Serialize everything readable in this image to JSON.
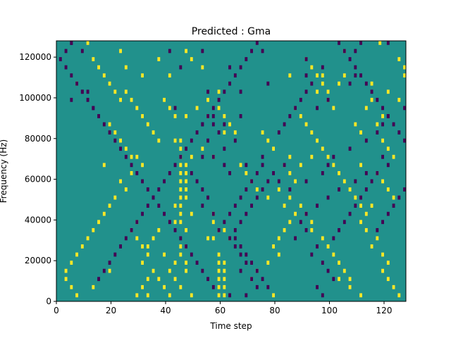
{
  "chart_data": {
    "type": "heatmap",
    "title": "Predicted : Gma",
    "xlabel": "Time step",
    "ylabel": "Frequency (Hz)",
    "xlim": [
      0,
      128
    ],
    "ylim": [
      0,
      128000
    ],
    "xticks": [
      0,
      20,
      40,
      60,
      80,
      100,
      120
    ],
    "xtick_labels": [
      "0",
      "20",
      "40",
      "60",
      "80",
      "100",
      "120"
    ],
    "yticks": [
      0,
      20000,
      40000,
      60000,
      80000,
      100000,
      120000
    ],
    "ytick_labels": [
      "0",
      "20000",
      "40000",
      "60000",
      "80000",
      "100000",
      "120000"
    ],
    "grid": false,
    "colormap": "viridis",
    "colors": {
      "background": "#21918c",
      "low": "#440154",
      "high": "#fde725"
    },
    "freq_bin_hz": 2000,
    "time_bin": 1,
    "high_cells": [
      [
        11,
        126
      ],
      [
        23,
        122
      ],
      [
        47,
        122
      ],
      [
        118,
        126
      ],
      [
        105,
        122
      ],
      [
        49,
        118
      ],
      [
        37,
        118
      ],
      [
        25,
        114
      ],
      [
        105,
        110
      ],
      [
        53,
        114
      ],
      [
        31,
        110
      ],
      [
        85,
        110
      ],
      [
        7,
        106
      ],
      [
        41,
        110
      ],
      [
        103,
        106
      ],
      [
        97,
        110
      ],
      [
        95,
        102
      ],
      [
        59,
        102
      ],
      [
        55,
        98
      ],
      [
        59,
        94
      ],
      [
        51,
        94
      ],
      [
        61,
        90
      ],
      [
        55,
        90
      ],
      [
        47,
        90
      ],
      [
        63,
        86
      ],
      [
        65,
        82
      ],
      [
        61,
        82
      ],
      [
        37,
        78
      ],
      [
        43,
        78
      ],
      [
        53,
        74
      ],
      [
        45,
        78
      ],
      [
        45,
        74
      ],
      [
        49,
        70
      ],
      [
        45,
        70
      ],
      [
        93,
        70
      ],
      [
        17,
        66
      ],
      [
        47,
        66
      ],
      [
        45,
        66
      ],
      [
        45,
        62
      ],
      [
        47,
        62
      ],
      [
        45,
        58
      ],
      [
        47,
        58
      ],
      [
        45,
        54
      ],
      [
        47,
        54
      ],
      [
        45,
        50
      ],
      [
        47,
        50
      ],
      [
        45,
        46
      ],
      [
        43,
        46
      ],
      [
        49,
        42
      ],
      [
        45,
        42
      ],
      [
        57,
        42
      ],
      [
        57,
        38
      ],
      [
        43,
        38
      ],
      [
        45,
        38
      ],
      [
        37,
        34
      ],
      [
        47,
        34
      ],
      [
        59,
        34
      ],
      [
        61,
        34
      ],
      [
        57,
        30
      ],
      [
        63,
        30
      ],
      [
        55,
        30
      ],
      [
        35,
        30
      ],
      [
        33,
        26
      ],
      [
        45,
        26
      ],
      [
        47,
        26
      ],
      [
        39,
        22
      ],
      [
        59,
        22
      ],
      [
        45,
        22
      ],
      [
        43,
        18
      ],
      [
        47,
        18
      ],
      [
        61,
        18
      ],
      [
        59,
        18
      ],
      [
        41,
        14
      ],
      [
        47,
        14
      ],
      [
        59,
        14
      ],
      [
        61,
        14
      ],
      [
        43,
        10
      ],
      [
        61,
        10
      ],
      [
        59,
        10
      ],
      [
        45,
        6
      ],
      [
        59,
        6
      ],
      [
        61,
        6
      ],
      [
        31,
        6
      ],
      [
        79,
        2
      ],
      [
        61,
        2
      ],
      [
        59,
        2
      ],
      [
        49,
        2
      ],
      [
        33,
        2
      ],
      [
        107,
        10
      ],
      [
        29,
        2
      ],
      [
        19,
        14
      ],
      [
        13,
        6
      ],
      [
        75,
        82
      ],
      [
        77,
        78
      ],
      [
        79,
        74
      ],
      [
        85,
        70
      ],
      [
        83,
        66
      ],
      [
        89,
        66
      ],
      [
        85,
        62
      ],
      [
        87,
        58
      ],
      [
        81,
        54
      ],
      [
        77,
        50
      ],
      [
        85,
        50
      ],
      [
        83,
        46
      ],
      [
        87,
        42
      ],
      [
        85,
        38
      ],
      [
        83,
        34
      ],
      [
        81,
        30
      ],
      [
        79,
        26
      ],
      [
        81,
        22
      ],
      [
        77,
        18
      ],
      [
        73,
        14
      ],
      [
        71,
        10
      ],
      [
        57,
        70
      ],
      [
        67,
        66
      ],
      [
        69,
        62
      ],
      [
        71,
        58
      ],
      [
        73,
        54
      ],
      [
        89,
        46
      ],
      [
        91,
        42
      ],
      [
        93,
        38
      ],
      [
        93,
        34
      ],
      [
        97,
        30
      ],
      [
        99,
        26
      ],
      [
        101,
        22
      ],
      [
        103,
        18
      ],
      [
        105,
        14
      ],
      [
        103,
        10
      ],
      [
        107,
        6
      ],
      [
        111,
        2
      ],
      [
        115,
        106
      ],
      [
        99,
        98
      ],
      [
        101,
        94
      ],
      [
        109,
        86
      ],
      [
        111,
        82
      ],
      [
        119,
        78
      ],
      [
        121,
        74
      ],
      [
        123,
        70
      ],
      [
        111,
        66
      ],
      [
        117,
        62
      ],
      [
        119,
        58
      ],
      [
        121,
        54
      ],
      [
        123,
        50
      ],
      [
        115,
        46
      ],
      [
        113,
        42
      ],
      [
        111,
        38
      ],
      [
        113,
        34
      ],
      [
        117,
        30
      ],
      [
        115,
        26
      ],
      [
        119,
        22
      ],
      [
        121,
        18
      ],
      [
        119,
        14
      ],
      [
        121,
        10
      ],
      [
        123,
        6
      ],
      [
        125,
        2
      ],
      [
        29,
        70
      ],
      [
        31,
        66
      ],
      [
        27,
        62
      ],
      [
        23,
        58
      ],
      [
        25,
        54
      ],
      [
        21,
        50
      ],
      [
        19,
        46
      ],
      [
        17,
        42
      ],
      [
        15,
        38
      ],
      [
        13,
        34
      ],
      [
        11,
        30
      ],
      [
        9,
        26
      ],
      [
        7,
        22
      ],
      [
        5,
        18
      ],
      [
        3,
        14
      ],
      [
        3,
        10
      ],
      [
        5,
        6
      ],
      [
        7,
        2
      ],
      [
        29,
        38
      ],
      [
        27,
        34
      ],
      [
        29,
        30
      ],
      [
        31,
        26
      ],
      [
        33,
        22
      ],
      [
        31,
        18
      ],
      [
        35,
        14
      ],
      [
        37,
        10
      ],
      [
        33,
        10
      ],
      [
        39,
        6
      ],
      [
        41,
        2
      ],
      [
        125,
        118
      ],
      [
        127,
        114
      ],
      [
        127,
        110
      ],
      [
        121,
        102
      ],
      [
        125,
        98
      ],
      [
        119,
        90
      ],
      [
        117,
        86
      ],
      [
        113,
        94
      ],
      [
        115,
        98
      ],
      [
        91,
        118
      ],
      [
        93,
        114
      ],
      [
        95,
        110
      ],
      [
        97,
        106
      ],
      [
        99,
        102
      ],
      [
        87,
        94
      ],
      [
        89,
        90
      ],
      [
        91,
        86
      ],
      [
        93,
        82
      ],
      [
        95,
        78
      ],
      [
        97,
        74
      ],
      [
        99,
        70
      ],
      [
        101,
        66
      ],
      [
        103,
        62
      ],
      [
        105,
        58
      ],
      [
        107,
        54
      ],
      [
        109,
        50
      ],
      [
        111,
        46
      ],
      [
        39,
        98
      ],
      [
        41,
        94
      ],
      [
        43,
        90
      ],
      [
        25,
        102
      ],
      [
        27,
        98
      ],
      [
        29,
        94
      ],
      [
        31,
        90
      ],
      [
        33,
        86
      ],
      [
        35,
        82
      ],
      [
        19,
        86
      ],
      [
        21,
        82
      ],
      [
        23,
        78
      ],
      [
        25,
        74
      ],
      [
        27,
        70
      ],
      [
        13,
        118
      ],
      [
        15,
        114
      ],
      [
        17,
        110
      ],
      [
        19,
        106
      ],
      [
        21,
        102
      ],
      [
        23,
        98
      ]
    ],
    "low_cells": [
      [
        5,
        126
      ],
      [
        9,
        122
      ],
      [
        41,
        122
      ],
      [
        53,
        122
      ],
      [
        75,
        122
      ],
      [
        111,
        126
      ],
      [
        121,
        126
      ],
      [
        109,
        122
      ],
      [
        91,
        118
      ],
      [
        97,
        114
      ],
      [
        63,
        114
      ],
      [
        45,
        114
      ],
      [
        91,
        110
      ],
      [
        93,
        106
      ],
      [
        107,
        106
      ],
      [
        109,
        110
      ],
      [
        9,
        102
      ],
      [
        11,
        102
      ],
      [
        5,
        98
      ],
      [
        13,
        94
      ],
      [
        55,
        102
      ],
      [
        43,
        94
      ],
      [
        67,
        102
      ],
      [
        77,
        106
      ],
      [
        91,
        102
      ],
      [
        99,
        98
      ],
      [
        95,
        94
      ],
      [
        57,
        90
      ],
      [
        53,
        86
      ],
      [
        57,
        86
      ],
      [
        67,
        90
      ],
      [
        61,
        86
      ],
      [
        59,
        82
      ],
      [
        65,
        78
      ],
      [
        61,
        74
      ],
      [
        55,
        78
      ],
      [
        53,
        70
      ],
      [
        57,
        70
      ],
      [
        61,
        66
      ],
      [
        63,
        62
      ],
      [
        69,
        66
      ],
      [
        75,
        70
      ],
      [
        83,
        66
      ],
      [
        79,
        62
      ],
      [
        81,
        58
      ],
      [
        85,
        54
      ],
      [
        91,
        58
      ],
      [
        97,
        62
      ],
      [
        99,
        66
      ],
      [
        101,
        70
      ],
      [
        107,
        74
      ],
      [
        113,
        78
      ],
      [
        117,
        82
      ],
      [
        119,
        86
      ],
      [
        121,
        90
      ],
      [
        127,
        94
      ],
      [
        119,
        70
      ],
      [
        121,
        66
      ],
      [
        113,
        62
      ],
      [
        109,
        58
      ],
      [
        103,
        54
      ],
      [
        99,
        50
      ],
      [
        95,
        46
      ],
      [
        91,
        42
      ],
      [
        89,
        38
      ],
      [
        91,
        34
      ],
      [
        87,
        30
      ],
      [
        95,
        26
      ],
      [
        93,
        22
      ],
      [
        97,
        18
      ],
      [
        99,
        14
      ],
      [
        101,
        10
      ],
      [
        95,
        6
      ],
      [
        97,
        2
      ],
      [
        49,
        62
      ],
      [
        51,
        58
      ],
      [
        53,
        54
      ],
      [
        55,
        50
      ],
      [
        53,
        46
      ],
      [
        57,
        42
      ],
      [
        61,
        38
      ],
      [
        59,
        34
      ],
      [
        63,
        30
      ],
      [
        65,
        26
      ],
      [
        67,
        22
      ],
      [
        69,
        18
      ],
      [
        67,
        14
      ],
      [
        71,
        10
      ],
      [
        73,
        6
      ],
      [
        69,
        2
      ],
      [
        63,
        42
      ],
      [
        65,
        46
      ],
      [
        67,
        50
      ],
      [
        69,
        54
      ],
      [
        71,
        58
      ],
      [
        73,
        62
      ],
      [
        75,
        66
      ],
      [
        65,
        34
      ],
      [
        67,
        38
      ],
      [
        69,
        42
      ],
      [
        71,
        46
      ],
      [
        73,
        50
      ],
      [
        75,
        54
      ],
      [
        77,
        58
      ],
      [
        65,
        30
      ],
      [
        67,
        26
      ],
      [
        69,
        22
      ],
      [
        71,
        18
      ],
      [
        73,
        14
      ],
      [
        75,
        10
      ],
      [
        77,
        6
      ],
      [
        63,
        2
      ],
      [
        57,
        6
      ],
      [
        55,
        10
      ],
      [
        53,
        14
      ],
      [
        51,
        18
      ],
      [
        49,
        22
      ],
      [
        47,
        26
      ],
      [
        45,
        30
      ],
      [
        43,
        34
      ],
      [
        41,
        38
      ],
      [
        39,
        42
      ],
      [
        37,
        46
      ],
      [
        35,
        50
      ],
      [
        33,
        54
      ],
      [
        31,
        58
      ],
      [
        29,
        62
      ],
      [
        27,
        66
      ],
      [
        25,
        70
      ],
      [
        23,
        74
      ],
      [
        21,
        78
      ],
      [
        19,
        82
      ],
      [
        17,
        86
      ],
      [
        15,
        90
      ],
      [
        13,
        94
      ],
      [
        11,
        98
      ],
      [
        9,
        102
      ],
      [
        7,
        106
      ],
      [
        5,
        110
      ],
      [
        3,
        114
      ],
      [
        1,
        118
      ],
      [
        3,
        122
      ],
      [
        5,
        126
      ],
      [
        15,
        10
      ],
      [
        17,
        14
      ],
      [
        19,
        18
      ],
      [
        21,
        22
      ],
      [
        23,
        26
      ],
      [
        25,
        30
      ],
      [
        27,
        34
      ],
      [
        29,
        38
      ],
      [
        31,
        42
      ],
      [
        33,
        46
      ],
      [
        35,
        50
      ],
      [
        37,
        54
      ],
      [
        39,
        58
      ],
      [
        41,
        62
      ],
      [
        43,
        66
      ],
      [
        45,
        70
      ],
      [
        47,
        74
      ],
      [
        49,
        78
      ],
      [
        51,
        82
      ],
      [
        53,
        86
      ],
      [
        55,
        90
      ],
      [
        57,
        94
      ],
      [
        59,
        98
      ],
      [
        61,
        102
      ],
      [
        63,
        106
      ],
      [
        65,
        110
      ],
      [
        67,
        114
      ],
      [
        69,
        118
      ],
      [
        71,
        122
      ],
      [
        73,
        126
      ],
      [
        103,
        126
      ],
      [
        105,
        122
      ],
      [
        107,
        118
      ],
      [
        109,
        114
      ],
      [
        111,
        110
      ],
      [
        113,
        106
      ],
      [
        115,
        102
      ],
      [
        117,
        98
      ],
      [
        119,
        94
      ],
      [
        121,
        90
      ],
      [
        123,
        86
      ],
      [
        125,
        82
      ],
      [
        127,
        78
      ],
      [
        81,
        82
      ],
      [
        83,
        86
      ],
      [
        85,
        90
      ],
      [
        87,
        94
      ],
      [
        89,
        98
      ],
      [
        117,
        34
      ],
      [
        119,
        38
      ],
      [
        121,
        42
      ],
      [
        123,
        46
      ],
      [
        125,
        50
      ],
      [
        127,
        54
      ],
      [
        101,
        30
      ],
      [
        103,
        34
      ],
      [
        105,
        38
      ],
      [
        107,
        42
      ],
      [
        109,
        46
      ],
      [
        111,
        50
      ],
      [
        113,
        54
      ],
      [
        115,
        58
      ],
      [
        117,
        62
      ]
    ]
  }
}
